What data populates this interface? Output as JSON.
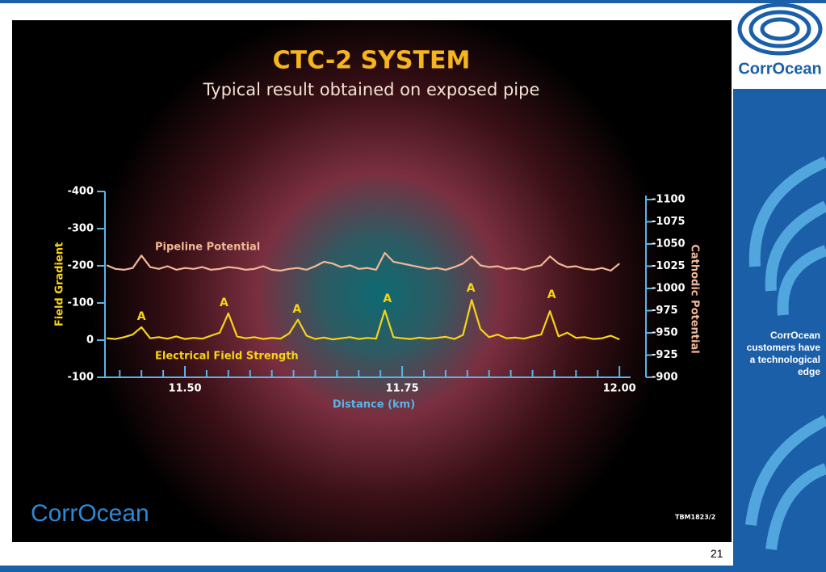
{
  "slide": {
    "logo": "CorrOcean",
    "footer_logo": "CorrOcean",
    "reference": "TBM1823/2",
    "sidebar_text": "CorrOcean customers have a technological edge",
    "page_number": "21"
  },
  "chart_data": {
    "type": "line",
    "title": "CTC-2 SYSTEM",
    "subtitle": "Typical result obtained on exposed pipe",
    "xlabel": "Distance (km)",
    "ylabel": "Field Gradient",
    "y2label": "Cathodic Potential",
    "xlim": [
      11.408,
      12.011
    ],
    "xticks": [
      {
        "value": 11.5,
        "label": "11.50"
      },
      {
        "value": 11.75,
        "label": "11.75"
      },
      {
        "value": 12.0,
        "label": "12.00"
      }
    ],
    "xminorticks": [
      11.425,
      11.45,
      11.475,
      11.525,
      11.55,
      11.575,
      11.6,
      11.625,
      11.65,
      11.675,
      11.7,
      11.725,
      11.775,
      11.8,
      11.825,
      11.85,
      11.875,
      11.9,
      11.925,
      11.95,
      11.975
    ],
    "ylim": [
      100,
      -400
    ],
    "yticks": [
      -400,
      -300,
      -200,
      -100,
      0,
      {
        "value": 100,
        "label": "-100"
      }
    ],
    "y2lim": [
      -900,
      -1100
    ],
    "y2ticks": [
      -1100,
      -1075,
      -1050,
      -1025,
      -1000,
      -975,
      -950,
      -925,
      -900
    ],
    "x": [
      11.41,
      11.42,
      11.43,
      11.44,
      11.45,
      11.46,
      11.47,
      11.48,
      11.49,
      11.5,
      11.51,
      11.52,
      11.53,
      11.54,
      11.55,
      11.56,
      11.57,
      11.58,
      11.59,
      11.6,
      11.61,
      11.62,
      11.63,
      11.64,
      11.65,
      11.66,
      11.67,
      11.68,
      11.69,
      11.7,
      11.71,
      11.72,
      11.73,
      11.74,
      11.75,
      11.76,
      11.77,
      11.78,
      11.79,
      11.8,
      11.81,
      11.82,
      11.83,
      11.84,
      11.85,
      11.86,
      11.87,
      11.88,
      11.89,
      11.9,
      11.91,
      11.92,
      11.93,
      11.94,
      11.95,
      11.96,
      11.97,
      11.98,
      11.99,
      12.0
    ],
    "series": [
      {
        "name": "Pipeline Potential",
        "color": "#f2b896",
        "axis": "y2",
        "values": [
          -1026,
          -1022,
          -1021,
          -1023,
          -1037,
          -1024,
          -1022,
          -1025,
          -1021,
          -1023,
          -1022,
          -1024,
          -1021,
          -1022,
          -1024,
          -1023,
          -1021,
          -1022,
          -1025,
          -1021,
          -1020,
          -1022,
          -1023,
          -1021,
          -1025,
          -1030,
          -1028,
          -1024,
          -1026,
          -1022,
          -1023,
          -1021,
          -1040,
          -1030,
          -1028,
          -1026,
          -1024,
          -1022,
          -1023,
          -1021,
          -1024,
          -1028,
          -1036,
          -1026,
          -1024,
          -1025,
          -1022,
          -1023,
          -1021,
          -1024,
          -1026,
          -1036,
          -1028,
          -1024,
          -1025,
          -1022,
          -1021,
          -1023,
          -1020,
          -1028
        ]
      },
      {
        "name": "Electrical Field Strength",
        "color": "#f7d417",
        "values": [
          -5,
          -3,
          -8,
          -15,
          -35,
          -5,
          -8,
          -4,
          -10,
          -3,
          -6,
          -4,
          -12,
          -20,
          -72,
          -10,
          -5,
          -8,
          -3,
          -6,
          -4,
          -18,
          -55,
          -12,
          -3,
          -7,
          -2,
          -5,
          -8,
          -3,
          -6,
          -4,
          -80,
          -8,
          -5,
          -3,
          -7,
          -4,
          -6,
          -9,
          -3,
          -14,
          -108,
          -30,
          -8,
          -15,
          -5,
          -7,
          -4,
          -10,
          -15,
          -78,
          -10,
          -20,
          -6,
          -8,
          -3,
          -5,
          -12,
          -2
        ]
      }
    ],
    "annotations": [
      {
        "text": "A",
        "x": 11.45,
        "y": -63
      },
      {
        "text": "A",
        "x": 11.545,
        "y": -100
      },
      {
        "text": "A",
        "x": 11.629,
        "y": -83
      },
      {
        "text": "A",
        "x": 11.733,
        "y": -111
      },
      {
        "text": "A",
        "x": 11.829,
        "y": -139
      },
      {
        "text": "A",
        "x": 11.922,
        "y": -122
      }
    ]
  }
}
